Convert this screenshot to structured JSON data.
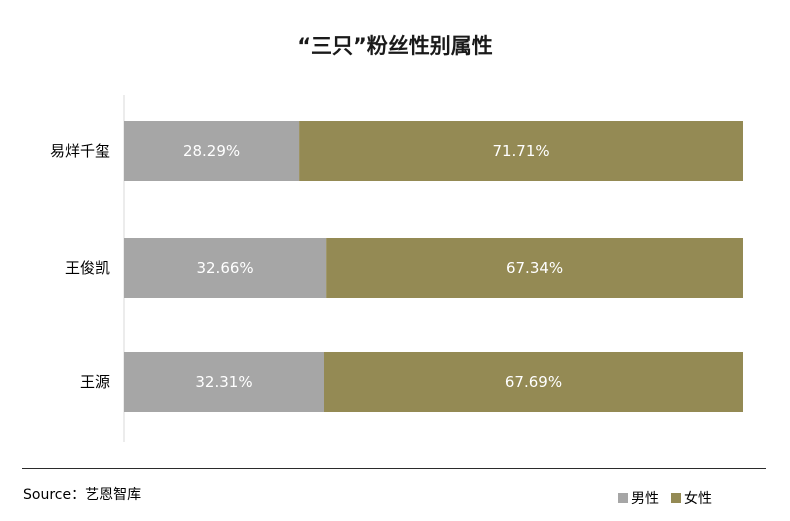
{
  "chart_data": {
    "type": "bar",
    "orientation": "horizontal",
    "stacked": true,
    "percent_stacked": true,
    "title": "“三只”粉丝性别属性",
    "categories": [
      "易烊千玺",
      "王俊凯",
      "王源"
    ],
    "series": [
      {
        "name": "男性",
        "values": [
          28.29,
          32.66,
          32.31
        ],
        "labels": [
          "28.29%",
          "32.66%",
          "32.31%"
        ],
        "color": "#a6a6a6"
      },
      {
        "name": "女性",
        "values": [
          71.71,
          67.34,
          67.69
        ],
        "labels": [
          "71.71%",
          "67.34%",
          "67.69%"
        ],
        "color": "#948a54"
      }
    ],
    "xlim": [
      0,
      100
    ],
    "grid": false,
    "legend_position": "bottom-right"
  },
  "source": "Source：艺恩智库"
}
